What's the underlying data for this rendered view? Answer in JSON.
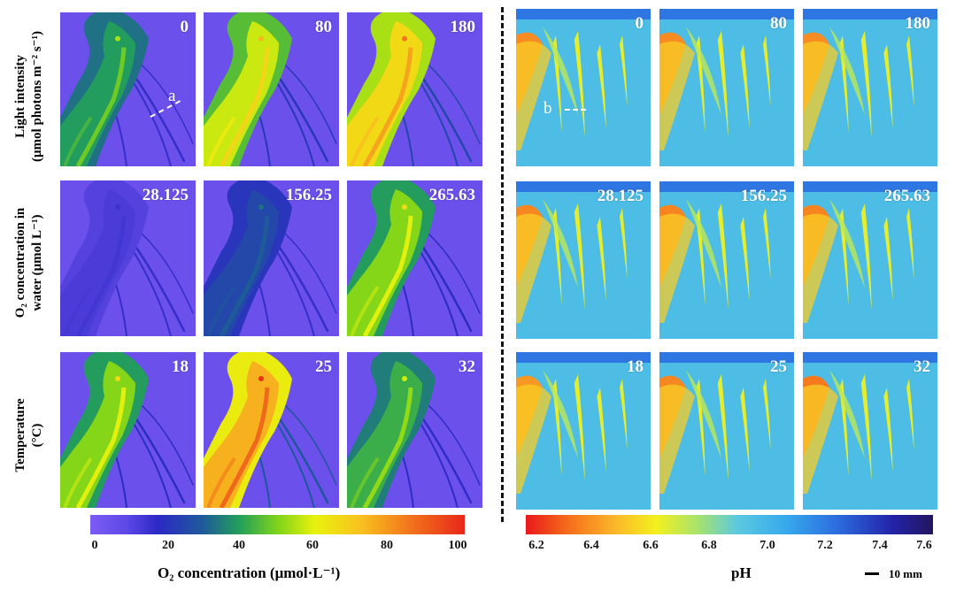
{
  "row_labels": [
    {
      "line1": "Light intensity",
      "line2": "(μmol photons m⁻² s⁻¹)"
    },
    {
      "line1": "O₂ concentration in",
      "line2": "water (μmol L⁻¹)"
    },
    {
      "line1": "Temperature",
      "line2": "(°C)"
    }
  ],
  "o2_panels": [
    [
      "0",
      "80",
      "180"
    ],
    [
      "28.125",
      "156.25",
      "265.63"
    ],
    [
      "18",
      "25",
      "32"
    ]
  ],
  "ph_panels": [
    [
      "0",
      "80",
      "180"
    ],
    [
      "28.125",
      "156.25",
      "265.63"
    ],
    [
      "18",
      "25",
      "32"
    ]
  ],
  "annotations": {
    "a": "a",
    "b": "b"
  },
  "o2_colorbar": {
    "ticks": [
      "0",
      "20",
      "40",
      "60",
      "80",
      "100"
    ],
    "title": "O₂ concentration (μmol·L⁻¹)"
  },
  "ph_colorbar": {
    "ticks": [
      "6.2",
      "6.4",
      "6.6",
      "6.8",
      "7.0",
      "7.2",
      "7.4",
      "7.6"
    ],
    "title": "pH"
  },
  "scale_bar": "10 mm"
}
